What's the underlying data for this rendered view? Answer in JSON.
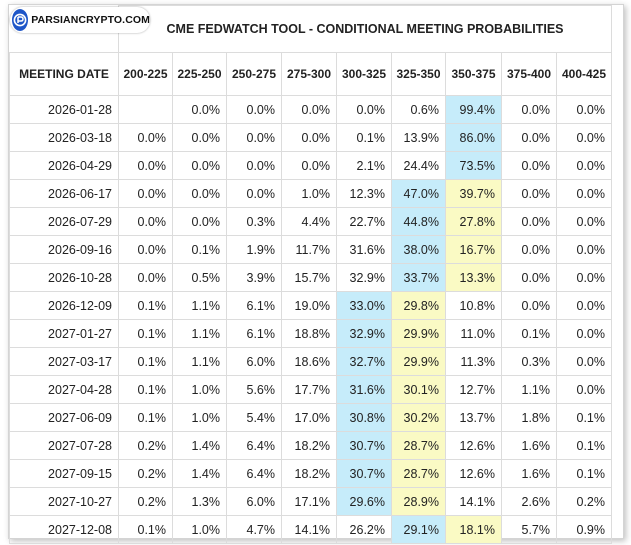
{
  "watermark": {
    "text": "PARSIANCRYPTO.COM",
    "logo_icon": "parsiancrypto-logo-icon",
    "logo_color": "#1e56c8"
  },
  "table": {
    "title": "CME FEDWATCH TOOL - CONDITIONAL MEETING PROBABILITIES",
    "date_header": "MEETING DATE",
    "columns": [
      "200-225",
      "225-250",
      "250-275",
      "275-300",
      "300-325",
      "325-350",
      "350-375",
      "375-400",
      "400-425"
    ],
    "highlight_colors": {
      "blue": "#c6ecfa",
      "yellow": "#fafac4"
    },
    "rows": [
      {
        "date": "2026-01-28",
        "values": [
          "",
          "0.0%",
          "0.0%",
          "0.0%",
          "0.0%",
          "0.6%",
          "99.4%",
          "0.0%",
          "0.0%"
        ],
        "blue": 6,
        "yellow": null
      },
      {
        "date": "2026-03-18",
        "values": [
          "0.0%",
          "0.0%",
          "0.0%",
          "0.0%",
          "0.1%",
          "13.9%",
          "86.0%",
          "0.0%",
          "0.0%"
        ],
        "blue": 6,
        "yellow": null
      },
      {
        "date": "2026-04-29",
        "values": [
          "0.0%",
          "0.0%",
          "0.0%",
          "0.0%",
          "2.1%",
          "24.4%",
          "73.5%",
          "0.0%",
          "0.0%"
        ],
        "blue": 6,
        "yellow": null
      },
      {
        "date": "2026-06-17",
        "values": [
          "0.0%",
          "0.0%",
          "0.0%",
          "1.0%",
          "12.3%",
          "47.0%",
          "39.7%",
          "0.0%",
          "0.0%"
        ],
        "blue": 5,
        "yellow": 6
      },
      {
        "date": "2026-07-29",
        "values": [
          "0.0%",
          "0.0%",
          "0.3%",
          "4.4%",
          "22.7%",
          "44.8%",
          "27.8%",
          "0.0%",
          "0.0%"
        ],
        "blue": 5,
        "yellow": 6
      },
      {
        "date": "2026-09-16",
        "values": [
          "0.0%",
          "0.1%",
          "1.9%",
          "11.7%",
          "31.6%",
          "38.0%",
          "16.7%",
          "0.0%",
          "0.0%"
        ],
        "blue": 5,
        "yellow": 6
      },
      {
        "date": "2026-10-28",
        "values": [
          "0.0%",
          "0.5%",
          "3.9%",
          "15.7%",
          "32.9%",
          "33.7%",
          "13.3%",
          "0.0%",
          "0.0%"
        ],
        "blue": 5,
        "yellow": 6
      },
      {
        "date": "2026-12-09",
        "values": [
          "0.1%",
          "1.1%",
          "6.1%",
          "19.0%",
          "33.0%",
          "29.8%",
          "10.8%",
          "0.0%",
          "0.0%"
        ],
        "blue": 4,
        "yellow": 5
      },
      {
        "date": "2027-01-27",
        "values": [
          "0.1%",
          "1.1%",
          "6.1%",
          "18.8%",
          "32.9%",
          "29.9%",
          "11.0%",
          "0.1%",
          "0.0%"
        ],
        "blue": 4,
        "yellow": 5
      },
      {
        "date": "2027-03-17",
        "values": [
          "0.1%",
          "1.1%",
          "6.0%",
          "18.6%",
          "32.7%",
          "29.9%",
          "11.3%",
          "0.3%",
          "0.0%"
        ],
        "blue": 4,
        "yellow": 5
      },
      {
        "date": "2027-04-28",
        "values": [
          "0.1%",
          "1.0%",
          "5.6%",
          "17.7%",
          "31.6%",
          "30.1%",
          "12.7%",
          "1.1%",
          "0.0%"
        ],
        "blue": 4,
        "yellow": 5
      },
      {
        "date": "2027-06-09",
        "values": [
          "0.1%",
          "1.0%",
          "5.4%",
          "17.0%",
          "30.8%",
          "30.2%",
          "13.7%",
          "1.8%",
          "0.1%"
        ],
        "blue": 4,
        "yellow": 5
      },
      {
        "date": "2027-07-28",
        "values": [
          "0.2%",
          "1.4%",
          "6.4%",
          "18.2%",
          "30.7%",
          "28.7%",
          "12.6%",
          "1.6%",
          "0.1%"
        ],
        "blue": 4,
        "yellow": 5
      },
      {
        "date": "2027-09-15",
        "values": [
          "0.2%",
          "1.4%",
          "6.4%",
          "18.2%",
          "30.7%",
          "28.7%",
          "12.6%",
          "1.6%",
          "0.1%"
        ],
        "blue": 4,
        "yellow": 5
      },
      {
        "date": "2027-10-27",
        "values": [
          "0.2%",
          "1.3%",
          "6.0%",
          "17.1%",
          "29.6%",
          "28.9%",
          "14.1%",
          "2.6%",
          "0.2%"
        ],
        "blue": 4,
        "yellow": 5
      },
      {
        "date": "2027-12-08",
        "values": [
          "0.1%",
          "1.0%",
          "4.7%",
          "14.1%",
          "26.2%",
          "29.1%",
          "18.1%",
          "5.7%",
          "0.9%"
        ],
        "blue": 5,
        "yellow": 6
      }
    ]
  }
}
